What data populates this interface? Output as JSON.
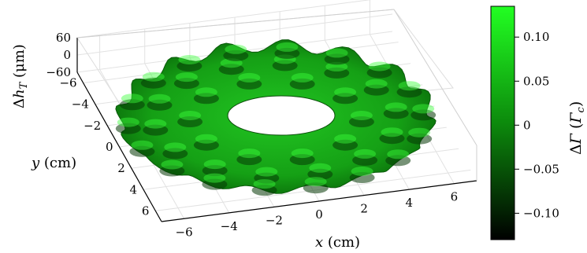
{
  "chart_data": {
    "type": "surface3d",
    "title": "",
    "surface": {
      "shape": "annulus",
      "inner_radius_cm": 1.8,
      "outer_radius_cm": 7.0,
      "colormap": "black-to-green",
      "pattern": "sinusoidal ripples (ring-shaped bumps)"
    },
    "axes": {
      "x": {
        "label_var": "x",
        "label_unit": " (cm)",
        "ticks": [
          "−6",
          "−4",
          "−2",
          "0",
          "2",
          "4",
          "6"
        ],
        "range": [
          -7,
          7
        ]
      },
      "y": {
        "label_var": "y",
        "label_unit": " (cm)",
        "ticks": [
          "−6",
          "−4",
          "−2",
          "0",
          "2",
          "4",
          "6"
        ],
        "range": [
          -7,
          7
        ]
      },
      "z": {
        "label_delta": "Δ",
        "label_var": "h",
        "label_sub": "T",
        "label_unit": " (μm)",
        "ticks": [
          "60",
          "0",
          "−60"
        ],
        "range": [
          -60,
          60
        ]
      }
    },
    "colorbar": {
      "label_delta": "Δ",
      "label_var": "Γ",
      "label_open": " (",
      "label_var2": "Γ",
      "label_sub": "c",
      "label_close": ")",
      "ticks": [
        "0.10",
        "0.05",
        "0",
        "−0.05",
        "−0.10"
      ],
      "tick_values": [
        0.1,
        0.05,
        0,
        -0.05,
        -0.1
      ],
      "range": [
        -0.13,
        0.135
      ],
      "color_low": "#000000",
      "color_high": "#22ff22"
    },
    "grid": true
  }
}
